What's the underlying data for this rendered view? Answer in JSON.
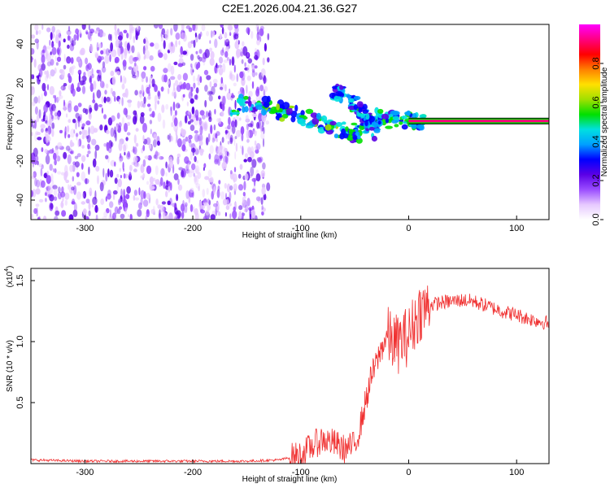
{
  "title": "C2E1.2026.004.21.36.G27",
  "chart_data": [
    {
      "type": "heatmap",
      "name": "spectrogram",
      "xlabel": "Height of straight line (km)",
      "ylabel": "Frequency (Hz)",
      "xlim": [
        -350,
        130
      ],
      "ylim": [
        -50,
        50
      ],
      "xticks": [
        -300,
        -200,
        -100,
        0,
        100
      ],
      "yticks": [
        -40,
        -20,
        0,
        20,
        40
      ],
      "colorbar": {
        "label": "Normalized spectral amplitude",
        "range": [
          0,
          1
        ],
        "ticks": [
          "0.0",
          "0.2",
          "0.4",
          "0.6",
          "0.8"
        ],
        "colors": [
          "#ffffff",
          "#e6c8ff",
          "#9a4dff",
          "#5a00e6",
          "#0000ff",
          "#00a0ff",
          "#00e0e0",
          "#00e000",
          "#a0e000",
          "#ffe000",
          "#ff8000",
          "#ff0000",
          "#ff0080",
          "#ff00ff"
        ]
      },
      "regions": [
        {
          "label": "broadband noise",
          "x": [
            -350,
            -130
          ],
          "y": [
            -50,
            50
          ],
          "level": 0.15
        },
        {
          "label": "signal track",
          "points": [
            [
              -165,
              8
            ],
            [
              -140,
              10
            ],
            [
              -120,
              6
            ],
            [
              -100,
              3
            ],
            [
              -80,
              -2
            ],
            [
              -60,
              -4
            ],
            [
              -45,
              -6
            ],
            [
              -30,
              2
            ],
            [
              -15,
              1
            ],
            [
              0,
              1
            ],
            [
              15,
              1
            ]
          ],
          "level": 0.4
        },
        {
          "label": "upper branch",
          "points": [
            [
              -70,
              16
            ],
            [
              -55,
              12
            ],
            [
              -45,
              6
            ],
            [
              -38,
              2
            ],
            [
              -30,
              -6
            ]
          ],
          "level": 0.35
        },
        {
          "label": "carrier line",
          "x": [
            0,
            130
          ],
          "y": 0.5,
          "level": 0.95
        }
      ]
    },
    {
      "type": "line",
      "name": "snr",
      "xlabel": "Height of straight line (km)",
      "ylabel": "SNR (10 * v/v)",
      "y_multiplier": "(x10^4)",
      "y_multiplier_base": "(x10",
      "y_multiplier_exp": "4",
      "y_multiplier_close": ")",
      "xlim": [
        -350,
        130
      ],
      "ylim": [
        0,
        1.6
      ],
      "xticks": [
        -300,
        -200,
        -100,
        0,
        100
      ],
      "yticks": [
        "0.5",
        "1.0",
        "1.5"
      ],
      "color": "#f03030",
      "series": [
        {
          "x": [
            -350,
            -300,
            -250,
            -200,
            -150,
            -120,
            -100,
            -90,
            -80,
            -70,
            -60,
            -50,
            -45,
            -40,
            -35,
            -30,
            -25,
            -20,
            -15,
            -10,
            -5,
            0,
            5,
            10,
            15,
            20,
            30,
            40,
            50,
            60,
            70,
            80,
            90,
            100,
            110,
            120,
            130
          ],
          "values": [
            0.03,
            0.02,
            0.02,
            0.02,
            0.02,
            0.03,
            0.07,
            0.14,
            0.2,
            0.17,
            0.12,
            0.15,
            0.3,
            0.5,
            0.7,
            0.82,
            0.95,
            1.05,
            1.0,
            0.98,
            1.02,
            1.05,
            1.15,
            1.25,
            1.27,
            1.3,
            1.32,
            1.33,
            1.34,
            1.33,
            1.3,
            1.27,
            1.24,
            1.22,
            1.19,
            1.17,
            1.15
          ]
        }
      ]
    }
  ]
}
